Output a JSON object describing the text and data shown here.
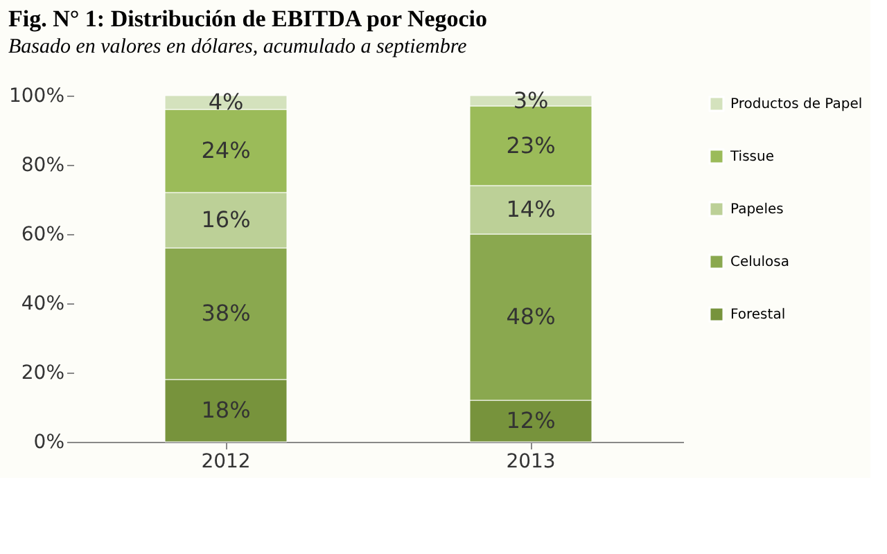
{
  "chart_data": {
    "type": "bar",
    "stacked": true,
    "title": "Fig. N° 1: Distribución de EBITDA por Negocio",
    "subtitle": "Basado en valores en dólares, acumulado a septiembre",
    "categories": [
      "2012",
      "2013"
    ],
    "series": [
      {
        "name": "Forestal",
        "color": "#77933c",
        "values": [
          18,
          12
        ],
        "value_labels": [
          "18%",
          "12%"
        ]
      },
      {
        "name": "Celulosa",
        "color": "#8aa84f",
        "values": [
          38,
          48
        ],
        "value_labels": [
          "38%",
          "48%"
        ]
      },
      {
        "name": "Papeles",
        "color": "#bcd097",
        "values": [
          16,
          14
        ],
        "value_labels": [
          "16%",
          "14%"
        ]
      },
      {
        "name": "Tissue",
        "color": "#9bbb59",
        "values": [
          24,
          23
        ],
        "value_labels": [
          "24%",
          "23%"
        ]
      },
      {
        "name": "Productos de Papel",
        "color": "#d4e2bd",
        "values": [
          4,
          3
        ],
        "value_labels": [
          "4%",
          "3%"
        ]
      }
    ],
    "ylim": [
      0,
      100
    ],
    "yticks": [
      {
        "value": 0,
        "label": "0%"
      },
      {
        "value": 20,
        "label": "20%"
      },
      {
        "value": 40,
        "label": "40%"
      },
      {
        "value": 60,
        "label": "60%"
      },
      {
        "value": 80,
        "label": "80%"
      },
      {
        "value": 100,
        "label": "100%"
      }
    ],
    "grid": false,
    "legend": "right"
  }
}
